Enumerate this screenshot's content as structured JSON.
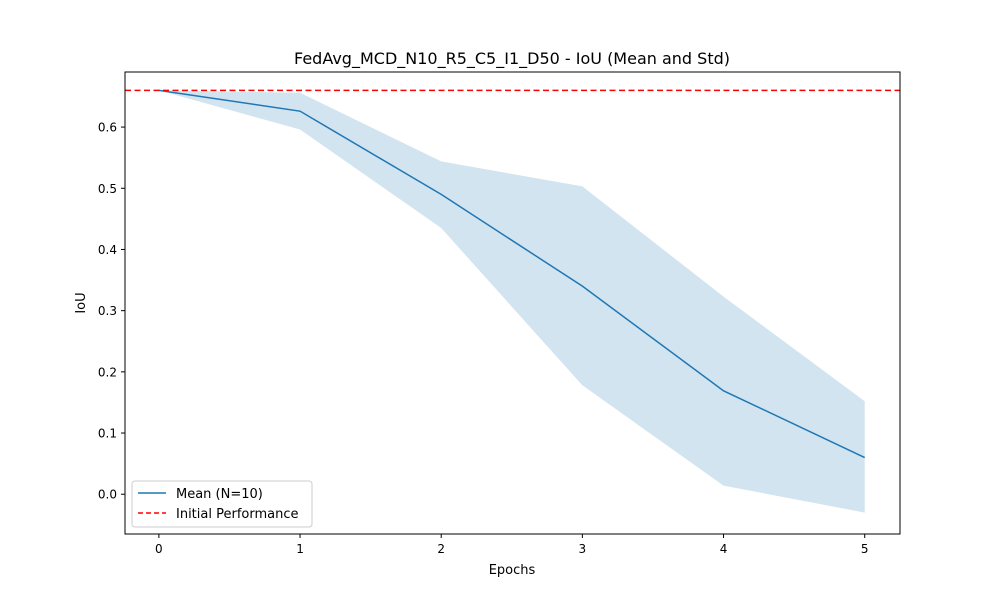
{
  "chart_data": {
    "type": "line",
    "title": "FedAvg_MCD_N10_R5_C5_I1_D50 - IoU (Mean and Std)",
    "xlabel": "Epochs",
    "ylabel": "IoU",
    "xlim": [
      -0.24,
      5.25
    ],
    "ylim": [
      -0.065,
      0.69
    ],
    "xticks": [
      0,
      1,
      2,
      3,
      4,
      5
    ],
    "xtick_labels": [
      "0",
      "1",
      "2",
      "3",
      "4",
      "5"
    ],
    "yticks": [
      0.0,
      0.1,
      0.2,
      0.3,
      0.4,
      0.5,
      0.6
    ],
    "ytick_labels": [
      "0.0",
      "0.1",
      "0.2",
      "0.3",
      "0.4",
      "0.5",
      "0.6"
    ],
    "grid": false,
    "legend_position": "lower-left",
    "series": [
      {
        "name": "Mean (N=10)",
        "kind": "line",
        "color": "#1f77b4",
        "x": [
          0,
          1,
          2,
          3,
          4,
          5
        ],
        "values": [
          0.66,
          0.626,
          0.49,
          0.34,
          0.169,
          0.06
        ]
      },
      {
        "name": "Initial Performance",
        "kind": "hline",
        "color": "#ff0000",
        "style": "dashed",
        "value": 0.66
      }
    ],
    "std_band": {
      "color": "#1f77b4",
      "opacity": 0.2,
      "x": [
        0,
        1,
        2,
        3,
        4,
        5
      ],
      "upper": [
        0.66,
        0.656,
        0.544,
        0.503,
        0.323,
        0.152
      ],
      "lower": [
        0.66,
        0.596,
        0.435,
        0.178,
        0.014,
        -0.03
      ]
    }
  }
}
